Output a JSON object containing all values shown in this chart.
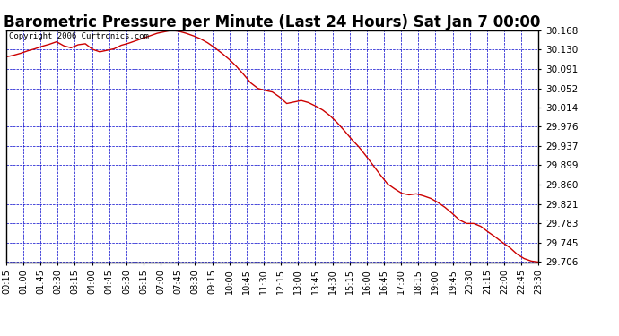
{
  "title": "Barometric Pressure per Minute (Last 24 Hours) Sat Jan 7 00:00",
  "copyright": "Copyright 2006 Curtronics.com",
  "y_ticks": [
    29.706,
    29.745,
    29.783,
    29.821,
    29.86,
    29.899,
    29.937,
    29.976,
    30.014,
    30.052,
    30.091,
    30.13,
    30.168
  ],
  "y_min": 29.706,
  "y_max": 30.168,
  "x_labels": [
    "00:15",
    "01:00",
    "01:45",
    "02:30",
    "03:15",
    "04:00",
    "04:45",
    "05:30",
    "06:15",
    "07:00",
    "07:45",
    "08:30",
    "09:15",
    "10:00",
    "10:45",
    "11:30",
    "12:15",
    "13:00",
    "13:45",
    "14:30",
    "15:15",
    "16:00",
    "16:45",
    "17:30",
    "18:15",
    "19:00",
    "19:45",
    "20:30",
    "21:15",
    "22:00",
    "22:45",
    "23:30"
  ],
  "background_color": "#ffffff",
  "plot_bg_color": "#ffffff",
  "grid_color": "#0000cc",
  "line_color": "#cc0000",
  "title_fontsize": 12,
  "x_label_fontsize": 7,
  "y_label_fontsize": 7.5,
  "copyright_fontsize": 6.5,
  "pressure_data": [
    30.115,
    30.118,
    30.122,
    30.127,
    30.131,
    30.136,
    30.14,
    30.145,
    30.137,
    30.133,
    30.139,
    30.141,
    30.13,
    30.125,
    30.128,
    30.131,
    30.138,
    30.142,
    30.147,
    30.152,
    30.157,
    30.162,
    30.165,
    30.168,
    30.166,
    30.162,
    30.157,
    30.151,
    30.143,
    30.133,
    30.122,
    30.11,
    30.096,
    30.08,
    30.063,
    30.052,
    30.048,
    30.045,
    30.035,
    30.022,
    30.025,
    30.028,
    30.024,
    30.017,
    30.009,
    29.998,
    29.984,
    29.968,
    29.951,
    29.936,
    29.918,
    29.899,
    29.88,
    29.862,
    29.852,
    29.843,
    29.84,
    29.842,
    29.838,
    29.833,
    29.825,
    29.815,
    29.803,
    29.79,
    29.783,
    29.783,
    29.777,
    29.766,
    29.756,
    29.745,
    29.735,
    29.722,
    29.713,
    29.708,
    29.706
  ]
}
